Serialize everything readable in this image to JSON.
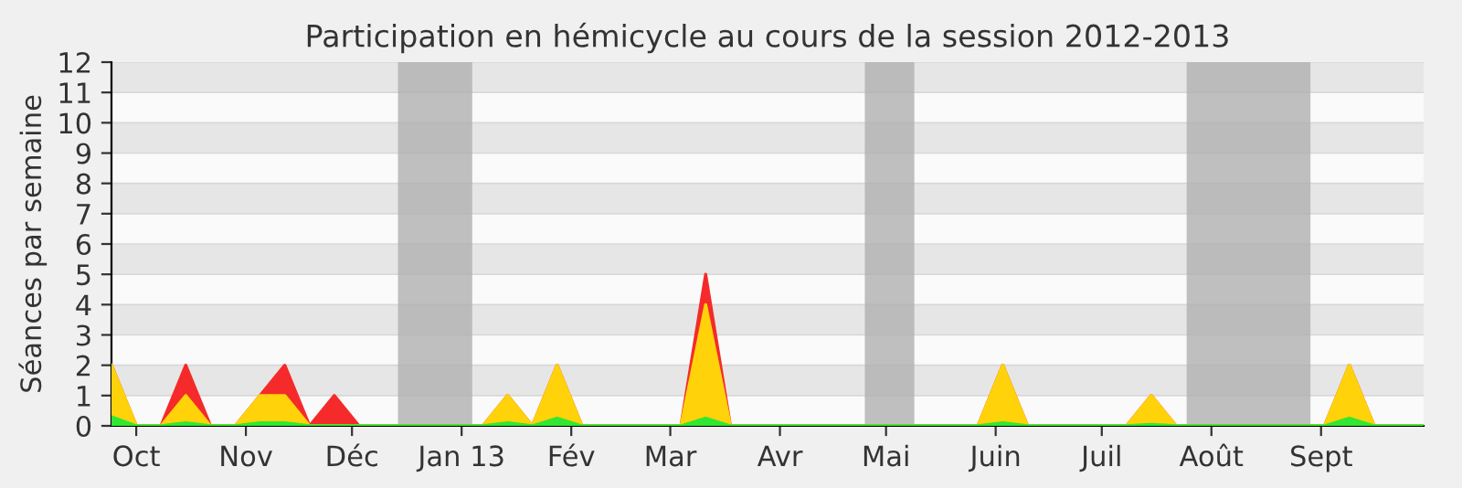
{
  "chart_data": {
    "type": "area",
    "title": "Participation en hémicycle au cours de la session 2012-2013",
    "ylabel": "Séances par semaine",
    "x": [
      "2012-09-24",
      "2012-10-01",
      "2012-10-08",
      "2012-10-15",
      "2012-10-22",
      "2012-10-29",
      "2012-11-05",
      "2012-11-12",
      "2012-11-19",
      "2012-11-26",
      "2012-12-03",
      "2012-12-10",
      "2012-12-17",
      "2012-12-24",
      "2012-12-31",
      "2013-01-07",
      "2013-01-14",
      "2013-01-21",
      "2013-01-28",
      "2013-02-04",
      "2013-02-11",
      "2013-02-18",
      "2013-02-25",
      "2013-03-04",
      "2013-03-11",
      "2013-03-18",
      "2013-03-25",
      "2013-04-01",
      "2013-04-08",
      "2013-04-15",
      "2013-04-22",
      "2013-04-29",
      "2013-05-06",
      "2013-05-13",
      "2013-05-20",
      "2013-05-27",
      "2013-06-03",
      "2013-06-10",
      "2013-06-17",
      "2013-06-24",
      "2013-07-01",
      "2013-07-08",
      "2013-07-15",
      "2013-07-22",
      "2013-07-29",
      "2013-08-05",
      "2013-08-12",
      "2013-08-19",
      "2013-08-26",
      "2013-09-02",
      "2013-09-09",
      "2013-09-16",
      "2013-09-23",
      "2013-09-30"
    ],
    "series": [
      {
        "color": "#f52a2a",
        "values": [
          2,
          0,
          0,
          2,
          0,
          0,
          1,
          2,
          0,
          1,
          0,
          0,
          0,
          0,
          0,
          0,
          1,
          0,
          2,
          0,
          0,
          0,
          0,
          0,
          5,
          0,
          0,
          0,
          0,
          0,
          0,
          0,
          0,
          0,
          0,
          0,
          2,
          0,
          0,
          0,
          0,
          0,
          1,
          0,
          0,
          0,
          0,
          0,
          0,
          0,
          2,
          0,
          0,
          0
        ]
      },
      {
        "color": "#ffd20a",
        "values": [
          2,
          0,
          0,
          1,
          0,
          0,
          1,
          1,
          0,
          0,
          0,
          0,
          0,
          0,
          0,
          0,
          1,
          0,
          2,
          0,
          0,
          0,
          0,
          0,
          4,
          0,
          0,
          0,
          0,
          0,
          0,
          0,
          0,
          0,
          0,
          0,
          2,
          0,
          0,
          0,
          0,
          0,
          1,
          0,
          0,
          0,
          0,
          0,
          0,
          0,
          2,
          0,
          0,
          0
        ]
      },
      {
        "color": "#33e633",
        "values": [
          0.3,
          0,
          0,
          0.1,
          0,
          0,
          0.1,
          0.1,
          0,
          0,
          0,
          0,
          0,
          0,
          0,
          0,
          0.1,
          0,
          0.25,
          0,
          0,
          0,
          0,
          0,
          0.25,
          0,
          0,
          0,
          0,
          0,
          0,
          0,
          0,
          0,
          0,
          0,
          0.1,
          0,
          0,
          0,
          0,
          0,
          0.05,
          0,
          0,
          0,
          0,
          0,
          0,
          0,
          0.25,
          0,
          0,
          0
        ]
      }
    ],
    "xlim": [
      "2012-09-24",
      "2013-09-30"
    ],
    "xticks": [
      {
        "value": "2012-10-01",
        "label": "Oct"
      },
      {
        "value": "2012-11-01",
        "label": "Nov"
      },
      {
        "value": "2012-12-01",
        "label": "Déc"
      },
      {
        "value": "2013-01-01",
        "label": "Jan 13"
      },
      {
        "value": "2013-02-01",
        "label": "Fév"
      },
      {
        "value": "2013-03-01",
        "label": "Mar"
      },
      {
        "value": "2013-04-01",
        "label": "Avr"
      },
      {
        "value": "2013-05-01",
        "label": "Mai"
      },
      {
        "value": "2013-06-01",
        "label": "Juin"
      },
      {
        "value": "2013-07-01",
        "label": "Juil"
      },
      {
        "value": "2013-08-01",
        "label": "Août"
      },
      {
        "value": "2013-09-01",
        "label": "Sept"
      }
    ],
    "ylim": [
      0,
      12
    ],
    "yticks": [
      0,
      1,
      2,
      3,
      4,
      5,
      6,
      7,
      8,
      9,
      10,
      11,
      12
    ],
    "grid": "y",
    "bands": [
      {
        "axis": "x",
        "from": "2012-12-14",
        "to": "2013-01-04",
        "color": "#b0b0b0"
      },
      {
        "axis": "x",
        "from": "2013-04-25",
        "to": "2013-05-09",
        "color": "#b0b0b0"
      },
      {
        "axis": "x",
        "from": "2013-07-25",
        "to": "2013-08-29",
        "color": "#b0b0b0"
      }
    ]
  }
}
